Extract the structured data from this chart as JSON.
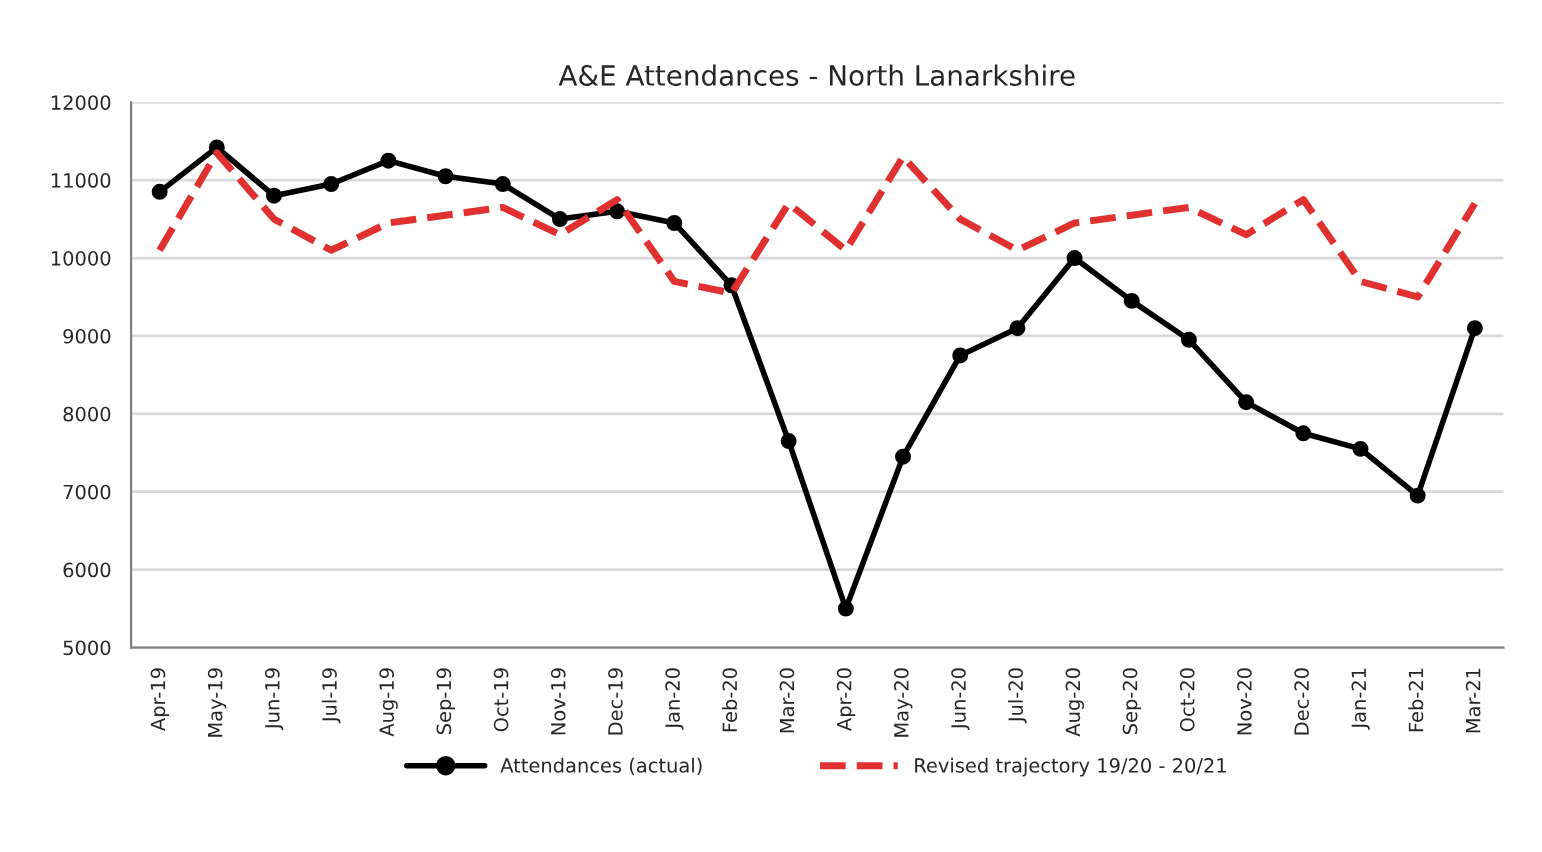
{
  "chart_data": {
    "type": "line",
    "title": "A&E Attendances - North Lanarkshire",
    "categories": [
      "Apr-19",
      "May-19",
      "Jun-19",
      "Jul-19",
      "Aug-19",
      "Sep-19",
      "Oct-19",
      "Nov-19",
      "Dec-19",
      "Jan-20",
      "Feb-20",
      "Mar-20",
      "Apr-20",
      "May-20",
      "Jun-20",
      "Jul-20",
      "Aug-20",
      "Sep-20",
      "Oct-20",
      "Nov-20",
      "Dec-20",
      "Jan-21",
      "Feb-21",
      "Mar-21"
    ],
    "series": [
      {
        "name": "Attendances (actual)",
        "color": "#000000",
        "marker": "circle",
        "line_style": "solid",
        "values": [
          10850,
          11420,
          10800,
          10950,
          11250,
          11050,
          10950,
          10500,
          10600,
          10450,
          9650,
          7650,
          5500,
          7450,
          8750,
          9100,
          10000,
          9450,
          8950,
          8150,
          7750,
          7550,
          6950,
          9100
        ]
      },
      {
        "name": "Revised trajectory 19/20 - 20/21",
        "color": "#e03030",
        "marker": "none",
        "line_style": "dashed",
        "values": [
          10100,
          11350,
          10500,
          10100,
          10450,
          10550,
          10650,
          10300,
          10750,
          9700,
          9550,
          10700,
          10100,
          11300,
          10500,
          10100,
          10450,
          10550,
          10650,
          10300,
          10750,
          9700,
          9500,
          10700
        ]
      }
    ],
    "ylim": [
      5000,
      12000
    ],
    "yticks": [
      5000,
      6000,
      7000,
      8000,
      9000,
      10000,
      11000,
      12000
    ],
    "grid": "y",
    "legend": "bottom"
  }
}
